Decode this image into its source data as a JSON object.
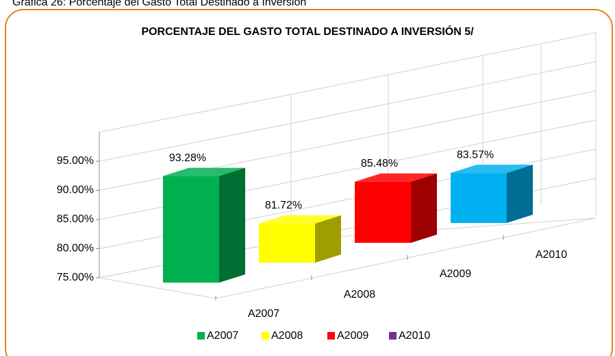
{
  "caption": "Gráfica 26: Porcentaje del Gasto Total Destinado a Inversión",
  "chart_data": {
    "type": "bar3d",
    "title": "PORCENTAJE DEL GASTO TOTAL DESTINADO A INVERSIÓN 5/",
    "categories": [
      "A2007",
      "A2008",
      "A2009",
      "A2010"
    ],
    "values": [
      93.28,
      81.72,
      85.48,
      83.57
    ],
    "value_labels": [
      "93.28%",
      "81.72%",
      "85.48%",
      "83.57%"
    ],
    "colors": [
      "#00b050",
      "#ffff00",
      "#ff0000",
      "#00b0f0"
    ],
    "ylim": [
      75,
      100
    ],
    "yticks": [
      {
        "value": 75,
        "label": "75.00%"
      },
      {
        "value": 80,
        "label": "80.00%"
      },
      {
        "value": 85,
        "label": "85.00%"
      },
      {
        "value": 90,
        "label": "90.00%"
      },
      {
        "value": 95,
        "label": "95.00%"
      }
    ],
    "grid": true,
    "legend": [
      {
        "name": "A2007",
        "color": "#00b050"
      },
      {
        "name": "A2008",
        "color": "#ffff00"
      },
      {
        "name": "A2009",
        "color": "#ff0000"
      },
      {
        "name": "A2010",
        "color": "#7030a0"
      }
    ]
  }
}
